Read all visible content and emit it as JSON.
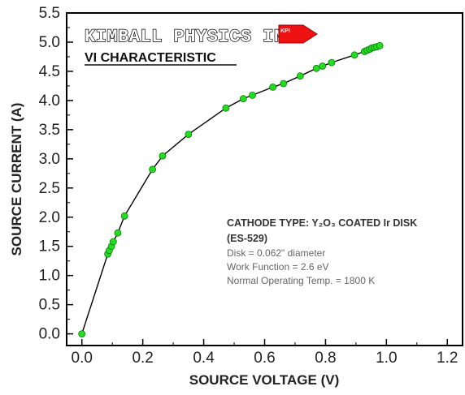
{
  "chart_data": {
    "type": "line",
    "title": "KIMBALL PHYSICS INC.",
    "subtitle": "VI CHARACTERISTIC",
    "logo_text": "KPI",
    "xlabel": "SOURCE VOLTAGE (V)",
    "ylabel": "SOURCE CURRENT (A)",
    "xlim": [
      -0.05,
      1.25
    ],
    "ylim": [
      -0.2,
      5.5
    ],
    "x_ticks": [
      "0.0",
      "0.2",
      "0.4",
      "0.6",
      "0.8",
      "1.0",
      "1.2"
    ],
    "y_ticks": [
      "0.0",
      "0.5",
      "1.0",
      "1.5",
      "2.0",
      "2.5",
      "3.0",
      "3.5",
      "4.0",
      "4.5",
      "5.0",
      "5.5"
    ],
    "grid": false,
    "colors": {
      "marker": "#22dd22",
      "line": "#000000",
      "logo": "#ee1111"
    },
    "series": [
      {
        "x": [
          0.0,
          0.085,
          0.09,
          0.097,
          0.103,
          0.118,
          0.14,
          0.232,
          0.265,
          0.35,
          0.473,
          0.53,
          0.56,
          0.627,
          0.662,
          0.717,
          0.77,
          0.79,
          0.82,
          0.895,
          0.928,
          0.937,
          0.945,
          0.952,
          0.96,
          0.968,
          0.978
        ],
        "y": [
          0.0,
          1.37,
          1.43,
          1.5,
          1.58,
          1.73,
          2.02,
          2.82,
          3.05,
          3.42,
          3.87,
          4.03,
          4.09,
          4.23,
          4.29,
          4.42,
          4.55,
          4.59,
          4.65,
          4.78,
          4.84,
          4.86,
          4.88,
          4.9,
          4.91,
          4.92,
          4.94
        ]
      }
    ]
  },
  "annotation": {
    "line1": "CATHODE TYPE: Y₂O₃ COATED Ir DISK",
    "line2": "(ES-529)",
    "line3": "Disk = 0.062\" diameter",
    "line4": "Work Function = 2.6 eV",
    "line5": "Normal Operating Temp. = 1800 K"
  }
}
